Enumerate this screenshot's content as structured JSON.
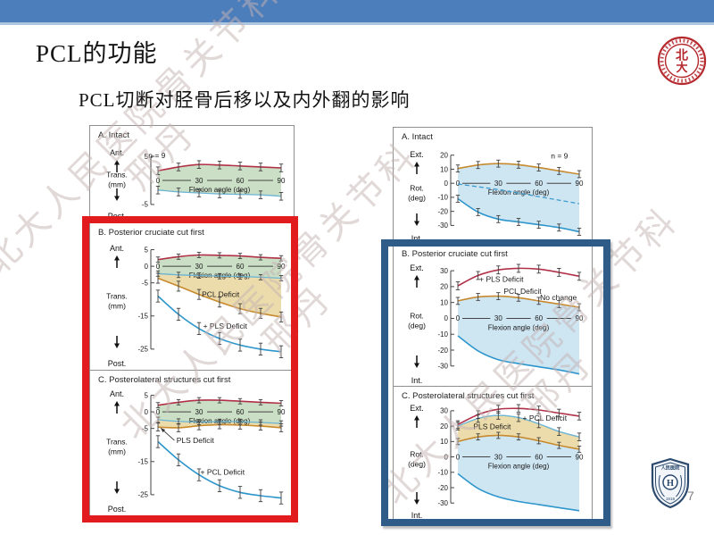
{
  "slide": {
    "title": "PCL的功能",
    "subtitle": "PCL切断对胫骨后移以及内外翻的影响",
    "page_number": "7",
    "watermark": {
      "line1": "北大人民医院骨关节科",
      "line2": "邢丹"
    },
    "colors": {
      "top_bar": "#4d7ebc",
      "top_bar_accent": "#aec6e0",
      "highlight_red": "#e11b1e",
      "highlight_blue": "#2f5b88"
    },
    "logos": {
      "top_right": {
        "name": "Peking University seal",
        "color": "#b5282d",
        "glyph_top": "北",
        "glyph_bottom": "大",
        "year": "1898"
      },
      "bottom_right": {
        "name": "People's Hospital shield",
        "color": "#2c4a6e",
        "top_text": "人民医院",
        "center_letter": "H",
        "year": "1918"
      }
    }
  },
  "chart_data": {
    "type": "line",
    "figures": [
      {
        "name": "tibial-translation-figure",
        "x": [
          0,
          15,
          30,
          45,
          60,
          75,
          90
        ],
        "xticks": [
          "0",
          "30",
          "60",
          "90"
        ],
        "xlabel": "Flexion angle (deg)",
        "panels": [
          {
            "label": "A. Intact",
            "dir_up": "Ant.",
            "dir_down": "Post.",
            "axis_label": [
              "Trans.",
              "(mm)"
            ],
            "ylim": [
              -6.5,
              6.5
            ],
            "yticks": [
              5,
              -5
            ],
            "series": [
              {
                "name": "anterior-limit",
                "color": "#b13148",
                "width": 1.6,
                "err": 0.8,
                "values": [
                  2.0,
                  2.8,
                  3.3,
                  3.2,
                  3.0,
                  2.8,
                  2.6
                ]
              },
              {
                "name": "posterior-limit",
                "color": "#6ab4d4",
                "width": 1.3,
                "err": 0.8,
                "values": [
                  -2.0,
                  -2.4,
                  -2.6,
                  -2.8,
                  -2.9,
                  -3.0,
                  -3.3
                ]
              }
            ],
            "fills": [
              {
                "between": [
                  0,
                  1
                ],
                "color": "#cbdfc6"
              }
            ],
            "annotations": [
              {
                "text": "n = 9",
                "x": -7,
                "y": 4.6
              }
            ]
          },
          {
            "label": "B. Posterior cruciate cut first",
            "dir_up": "Ant.",
            "dir_down": "Post.",
            "axis_label": [
              "Trans.",
              "(mm)"
            ],
            "ylim": [
              -28,
              6.5
            ],
            "yticks": [
              5,
              0,
              -5,
              -15,
              -25
            ],
            "series": [
              {
                "name": "anterior-limit",
                "color": "#b13148",
                "width": 1.6,
                "err": 0.8,
                "values": [
                  2.0,
                  2.9,
                  3.4,
                  3.3,
                  3.1,
                  2.7,
                  2.4
                ]
              },
              {
                "name": "posterior-intact",
                "color": "#6ab4d4",
                "width": 1.3,
                "err": 0.8,
                "values": [
                  -2.2,
                  -2.6,
                  -2.8,
                  -3.0,
                  -3.1,
                  -3.3,
                  -3.6
                ]
              },
              {
                "name": "pcl-deficit",
                "color": "#c78a2e",
                "width": 1.6,
                "err": 1.5,
                "values": [
                  -3.6,
                  -6.0,
                  -8.5,
                  -10.8,
                  -12.8,
                  -14.2,
                  -15.3
                ]
              },
              {
                "name": "plus-pls-deficit",
                "color": "#2d96cc",
                "width": 1.6,
                "err": 1.8,
                "values": [
                  -9.0,
                  -14.5,
                  -18.8,
                  -21.8,
                  -23.8,
                  -25.0,
                  -25.8
                ]
              }
            ],
            "fills": [
              {
                "between": [
                  0,
                  1
                ],
                "color": "#cbdfc6"
              },
              {
                "between": [
                  1,
                  2
                ],
                "color": "#eddcab"
              }
            ],
            "annotations": [
              {
                "text": "PCL Deficit",
                "x": 32,
                "y": -9.3
              },
              {
                "text": "+ PLS Deficit",
                "x": 33,
                "y": -18.8
              }
            ]
          },
          {
            "label": "C. Posterolateral structures cut first",
            "dir_up": "Ant.",
            "dir_down": "Post.",
            "axis_label": [
              "Trans.",
              "(mm)"
            ],
            "ylim": [
              -28,
              6.5
            ],
            "yticks": [
              5,
              0,
              -5,
              -15,
              -25
            ],
            "series": [
              {
                "name": "anterior-limit",
                "color": "#b13148",
                "width": 1.6,
                "err": 0.8,
                "values": [
                  2.0,
                  2.9,
                  3.5,
                  3.5,
                  3.2,
                  2.9,
                  2.6
                ]
              },
              {
                "name": "posterior-intact",
                "color": "#6ab4d4",
                "width": 1.3,
                "err": 0.8,
                "values": [
                  -2.4,
                  -2.9,
                  -3.1,
                  -3.0,
                  -3.0,
                  -3.2,
                  -3.5
                ]
              },
              {
                "name": "pls-deficit",
                "color": "#c78a2e",
                "width": 1.6,
                "err": 1.2,
                "values": [
                  -4.6,
                  -4.8,
                  -4.2,
                  -3.9,
                  -4.0,
                  -4.3,
                  -4.8
                ]
              },
              {
                "name": "plus-pcl-deficit",
                "color": "#2d96cc",
                "width": 1.6,
                "err": 1.8,
                "values": [
                  -9.0,
                  -14.5,
                  -19.0,
                  -22.3,
                  -24.3,
                  -25.3,
                  -26.0
                ]
              }
            ],
            "fills": [
              {
                "between": [
                  0,
                  1
                ],
                "color": "#cbdfc6"
              },
              {
                "between": [
                  1,
                  2
                ],
                "color": "#eddcab"
              }
            ],
            "annotations": [
              {
                "text": "PLS Deficit",
                "x": 13.5,
                "y": -9.4,
                "leader": [
                  [
                    12,
                    -8.6
                  ],
                  [
                    2,
                    -4.9
                  ]
                ]
              },
              {
                "text": "+ PCL Deficit",
                "x": 31,
                "y": -19.0
              }
            ]
          }
        ]
      },
      {
        "name": "tibial-rotation-figure",
        "x": [
          0,
          15,
          30,
          45,
          60,
          75,
          90
        ],
        "xticks": [
          "0",
          "30",
          "60",
          "90"
        ],
        "xlabel": "Flexion angle (deg)",
        "panels": [
          {
            "label": "A. Intact",
            "dir_up": "Ext.",
            "dir_down": "Int.",
            "axis_label": [
              "Rot.",
              "(deg)"
            ],
            "ylim": [
              -38,
              23
            ],
            "yticks": [
              20,
              10,
              0,
              -10,
              -20,
              -30
            ],
            "series": [
              {
                "name": "external-limit",
                "color": "#c78a2e",
                "width": 1.6,
                "err": 2.5,
                "values": [
                  10.5,
                  13.0,
                  14.0,
                  13.2,
                  11.2,
                  8.8,
                  6.5
                ]
              },
              {
                "name": "neutral-path",
                "color": "#3d9ad1",
                "width": 1.3,
                "dash": "5,3",
                "err": 0,
                "values": [
                  -0.5,
                  -2.5,
                  -4.5,
                  -7.0,
                  -9.5,
                  -12.0,
                  -14.5
                ]
              },
              {
                "name": "internal-limit",
                "color": "#2d96cc",
                "width": 1.6,
                "err": 2.5,
                "values": [
                  -11.0,
                  -20.5,
                  -25.5,
                  -27.5,
                  -29.5,
                  -31.5,
                  -34.5
                ]
              }
            ],
            "fills": [
              {
                "between": [
                  0,
                  2
                ],
                "color": "#cee5f2"
              }
            ],
            "annotations": [
              {
                "text": "n = 9",
                "x": 69,
                "y": 17.5
              }
            ]
          },
          {
            "label": "B. Posterior cruciate cut first",
            "dir_up": "Ext.",
            "dir_down": "Int.",
            "axis_label": [
              "Rot.",
              "(deg)"
            ],
            "ylim": [
              -38,
              34
            ],
            "yticks": [
              30,
              20,
              10,
              0,
              -10,
              -20,
              -30
            ],
            "series": [
              {
                "name": "plus-pls-deficit",
                "color": "#b13148",
                "width": 1.6,
                "err": 2.5,
                "values": [
                  20.5,
                  27.0,
                  30.5,
                  31.5,
                  31.0,
                  29.0,
                  26.5
                ]
              },
              {
                "name": "pcl-deficit-no-change",
                "color": "#c78a2e",
                "width": 1.6,
                "err": 2.2,
                "values": [
                  11.0,
                  13.5,
                  14.0,
                  13.0,
                  11.0,
                  9.0,
                  7.0
                ]
              },
              {
                "name": "internal-limit",
                "color": "#2d96cc",
                "width": 1.6,
                "err": 0,
                "values": [
                  -11.0,
                  -20.5,
                  -26.0,
                  -28.5,
                  -30.5,
                  -32.5,
                  -35.0
                ]
              }
            ],
            "fills": [
              {
                "between": [
                  1,
                  2
                ],
                "color": "#cee5f2"
              }
            ],
            "annotations": [
              {
                "text": "+ PLS Deficit",
                "x": 16,
                "y": 23.0
              },
              {
                "text": "PCL Deficit",
                "x": 34,
                "y": 15.3
              },
              {
                "text": "No change",
                "x": 61,
                "y": 11.5
              }
            ]
          },
          {
            "label": "C. Posterolateral structures cut first",
            "dir_up": "Ext.",
            "dir_down": "Int.",
            "axis_label": [
              "Rot.",
              "(deg)"
            ],
            "ylim": [
              -38,
              34
            ],
            "yticks": [
              30,
              20,
              10,
              0,
              -10,
              -20,
              -30
            ],
            "series": [
              {
                "name": "plus-pcl-deficit",
                "color": "#b13148",
                "width": 1.6,
                "err": 2.5,
                "values": [
                  21.0,
                  27.5,
                  31.0,
                  31.5,
                  30.5,
                  28.5,
                  26.5
                ]
              },
              {
                "name": "pls-deficit",
                "color": "#6ab4d4",
                "width": 1.4,
                "err": 2.5,
                "values": [
                  20.0,
                  25.0,
                  27.0,
                  25.5,
                  21.5,
                  16.5,
                  13.0
                ]
              },
              {
                "name": "external-remaining",
                "color": "#c78a2e",
                "width": 1.6,
                "err": 2.0,
                "values": [
                  10.0,
                  13.0,
                  14.0,
                  13.0,
                  10.5,
                  7.5,
                  5.0
                ]
              },
              {
                "name": "internal-limit",
                "color": "#2d96cc",
                "width": 1.6,
                "err": 0,
                "values": [
                  -11.0,
                  -20.5,
                  -26.0,
                  -29.0,
                  -31.0,
                  -33.0,
                  -35.0
                ]
              }
            ],
            "fills": [
              {
                "between": [
                  1,
                  2
                ],
                "color": "#eddcab"
              },
              {
                "between": [
                  2,
                  3
                ],
                "color": "#cee5f2"
              }
            ],
            "annotations": [
              {
                "text": "PLS Deficit",
                "x": 11.5,
                "y": 18.0
              },
              {
                "text": "+ PCL Deficit",
                "x": 48,
                "y": 23.5
              }
            ]
          }
        ]
      }
    ]
  }
}
